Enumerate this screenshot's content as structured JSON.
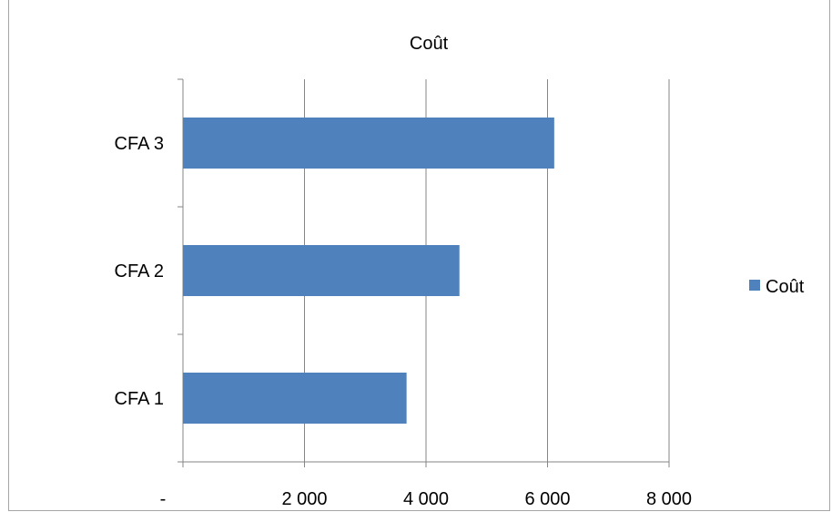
{
  "chart_data": {
    "type": "bar",
    "orientation": "horizontal",
    "title": "Coût",
    "categories": [
      "CFA 1",
      "CFA 2",
      "CFA 3"
    ],
    "series": [
      {
        "name": "Coût",
        "color": "#4f81bd",
        "values": [
          3680,
          4550,
          6110
        ]
      }
    ],
    "xlim": [
      0,
      8000
    ],
    "x_ticks": [
      0,
      2000,
      4000,
      6000,
      8000
    ],
    "x_tick_labels": [
      "-",
      "2 000",
      "4 000",
      "6 000",
      "8 000"
    ],
    "xlabel": "",
    "ylabel": "",
    "grid": "vertical",
    "legend_position": "right"
  }
}
